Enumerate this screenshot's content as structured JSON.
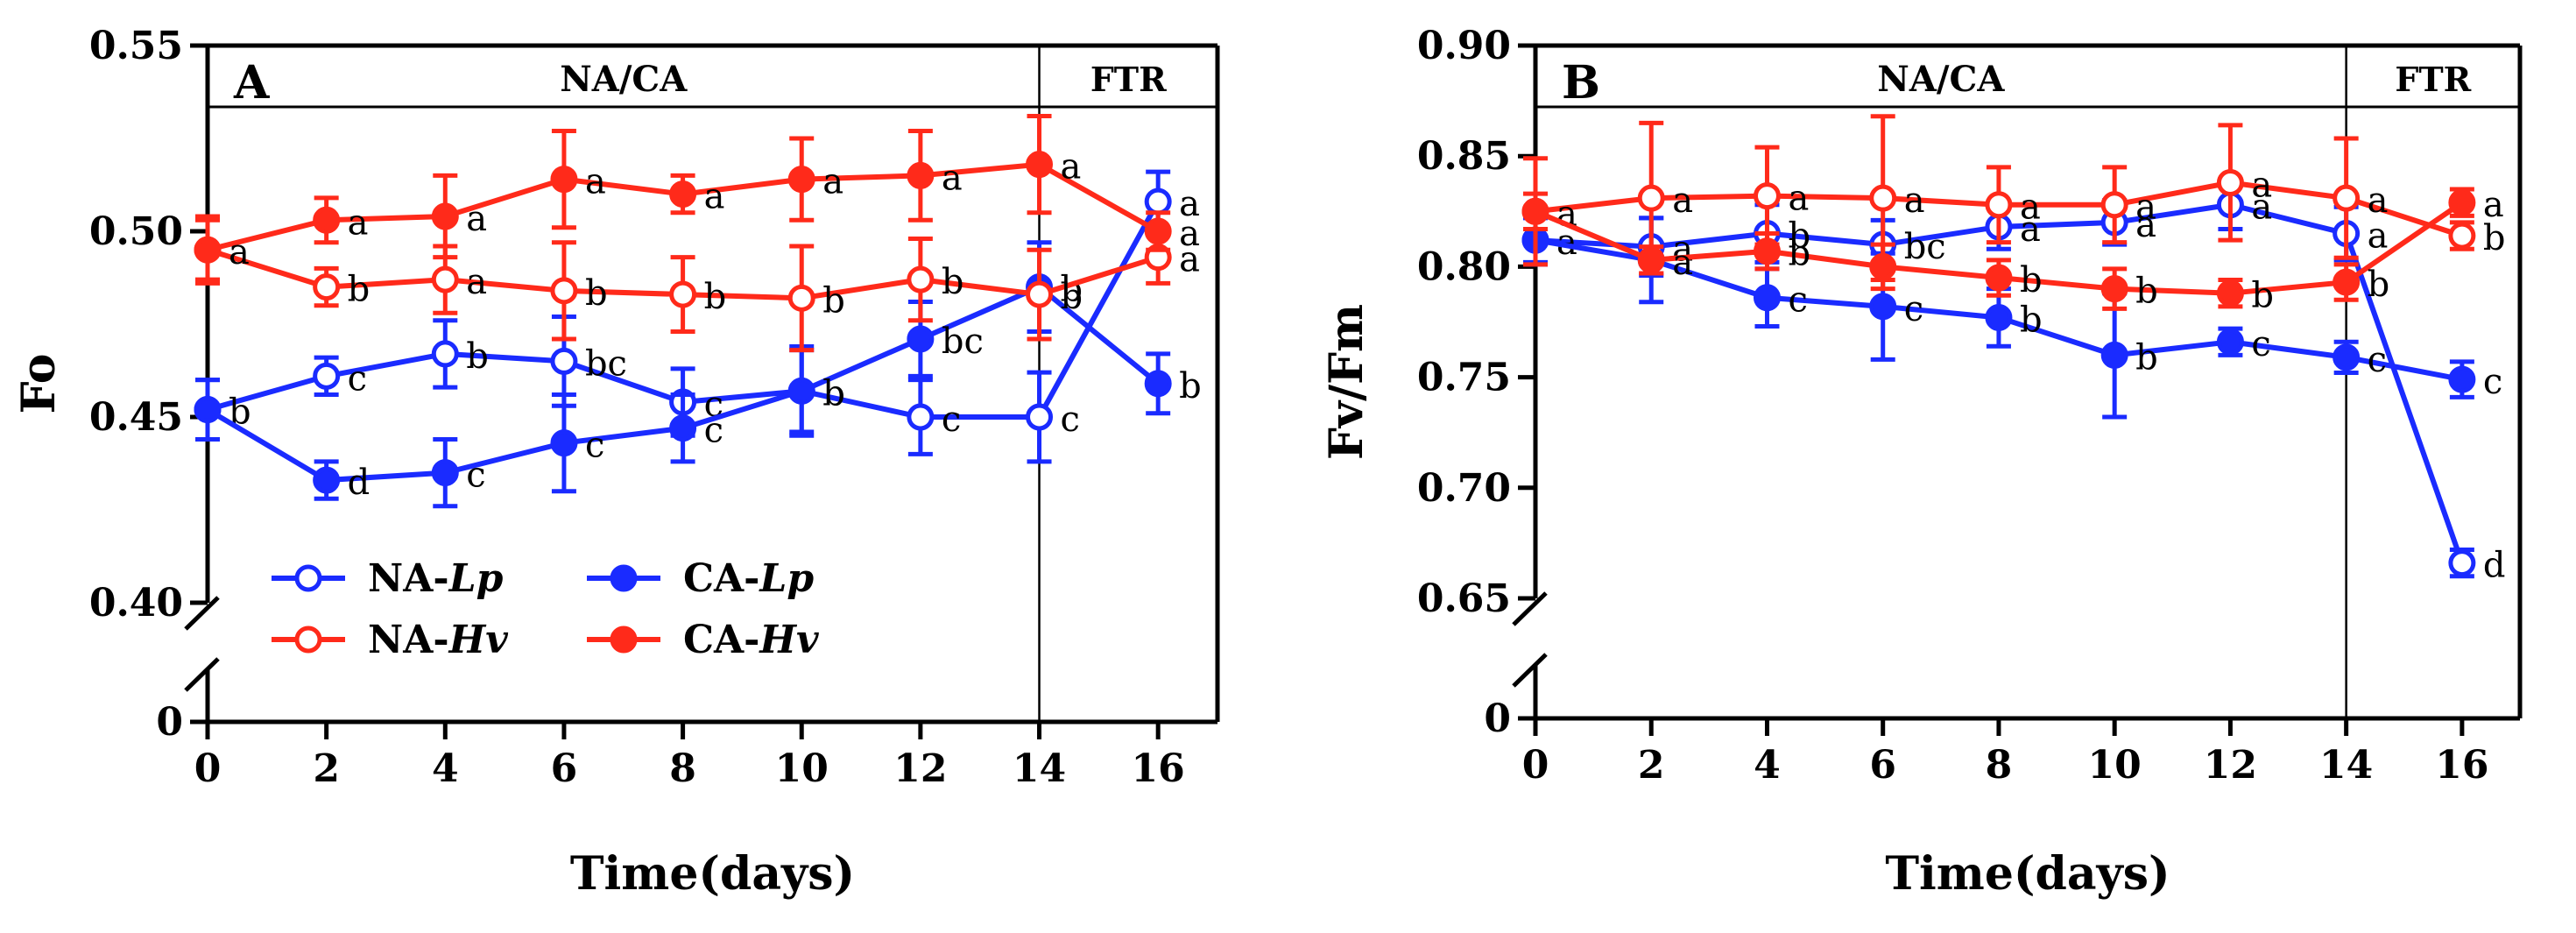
{
  "colors": {
    "blue": "#1a2bff",
    "red": "#ff2a1a",
    "axis": "#000000"
  },
  "chart_data": [
    {
      "type": "line",
      "panel_label": "A",
      "ylabel": "Fo",
      "xlabel": "Time(days)",
      "x": [
        0,
        2,
        4,
        6,
        8,
        10,
        12,
        14,
        16
      ],
      "xticks": [
        "0",
        "2",
        "4",
        "6",
        "8",
        "10",
        "12",
        "14",
        "16"
      ],
      "xlim": [
        0,
        17
      ],
      "ylim": [
        0.4,
        0.55
      ],
      "yticks": [
        "0.40",
        "0.45",
        "0.50",
        "0.55"
      ],
      "y_zero_label": "0",
      "y_zero": 0,
      "y_decimals": 2,
      "divider_x": 14,
      "headers": [
        "NA/CA",
        "FTR"
      ],
      "series": [
        {
          "name": "NA-Lp",
          "base": "NA-",
          "italic": "Lp",
          "color": "blue",
          "filled": false,
          "values": [
            0.452,
            0.461,
            0.467,
            0.465,
            0.454,
            0.457,
            0.45,
            0.45,
            0.508
          ],
          "errors": [
            0.008,
            0.005,
            0.009,
            0.012,
            0.009,
            0.011,
            0.01,
            0.012,
            0.008
          ],
          "letters": [
            "b",
            "c",
            "b",
            "bc",
            "c",
            "b",
            "c",
            "c",
            "a"
          ]
        },
        {
          "name": "CA-Lp",
          "base": "CA-",
          "italic": "Lp",
          "color": "blue",
          "filled": true,
          "values": [
            0.452,
            0.433,
            0.435,
            0.443,
            0.447,
            0.457,
            0.471,
            0.485,
            0.459
          ],
          "errors": [
            0.008,
            0.005,
            0.009,
            0.013,
            0.009,
            0.012,
            0.01,
            0.012,
            0.008
          ],
          "letters": [
            "",
            "d",
            "c",
            "c",
            "c",
            "b",
            "bc",
            "b",
            "b"
          ]
        },
        {
          "name": "NA-Hv",
          "base": "NA-",
          "italic": "Hv",
          "color": "red",
          "filled": false,
          "values": [
            0.495,
            0.485,
            0.487,
            0.484,
            0.483,
            0.482,
            0.487,
            0.483,
            0.493
          ],
          "errors": [
            0.009,
            0.005,
            0.009,
            0.013,
            0.01,
            0.014,
            0.011,
            0.012,
            0.007
          ],
          "letters": [
            "",
            "b",
            "a",
            "b",
            "b",
            "b",
            "b",
            "b",
            "a"
          ]
        },
        {
          "name": "CA-Hv",
          "base": "CA-",
          "italic": "Hv",
          "color": "red",
          "filled": true,
          "values": [
            0.495,
            0.503,
            0.504,
            0.514,
            0.51,
            0.514,
            0.515,
            0.518,
            0.5
          ],
          "errors": [
            0.008,
            0.006,
            0.011,
            0.013,
            0.005,
            0.011,
            0.012,
            0.013,
            0.005
          ],
          "letters": [
            "a",
            "a",
            "a",
            "a",
            "a",
            "a",
            "a",
            "a",
            "a"
          ]
        }
      ],
      "legend": [
        {
          "series": 0,
          "col": 0,
          "row": 0
        },
        {
          "series": 1,
          "col": 1,
          "row": 0
        },
        {
          "series": 2,
          "col": 0,
          "row": 1
        },
        {
          "series": 3,
          "col": 1,
          "row": 1
        }
      ]
    },
    {
      "type": "line",
      "panel_label": "B",
      "ylabel": "Fv/Fm",
      "xlabel": "Time(days)",
      "x": [
        0,
        2,
        4,
        6,
        8,
        10,
        12,
        14,
        16
      ],
      "xticks": [
        "0",
        "2",
        "4",
        "6",
        "8",
        "10",
        "12",
        "14",
        "16"
      ],
      "xlim": [
        0,
        17
      ],
      "ylim": [
        0.65,
        0.9
      ],
      "yticks": [
        "0.65",
        "0.70",
        "0.75",
        "0.80",
        "0.85",
        "0.90"
      ],
      "y_zero_label": "0",
      "y_zero": 0,
      "y_decimals": 2,
      "divider_x": 14,
      "headers": [
        "NA/CA",
        "FTR"
      ],
      "series": [
        {
          "name": "NA-Lp",
          "base": "NA-",
          "italic": "Lp",
          "color": "blue",
          "filled": false,
          "values": [
            0.812,
            0.809,
            0.815,
            0.81,
            0.818,
            0.82,
            0.828,
            0.815,
            0.666
          ],
          "errors": [
            0.011,
            0.013,
            0.013,
            0.011,
            0.01,
            0.01,
            0.011,
            0.012,
            0.006
          ],
          "letters": [
            "a",
            "a",
            "b",
            "bc",
            "a",
            "a",
            "a",
            "a",
            "d"
          ]
        },
        {
          "name": "CA-Lp",
          "base": "CA-",
          "italic": "Lp",
          "color": "blue",
          "filled": true,
          "values": [
            0.812,
            0.803,
            0.786,
            0.782,
            0.777,
            0.76,
            0.766,
            0.759,
            0.749
          ],
          "errors": [
            0.01,
            0.019,
            0.013,
            0.024,
            0.013,
            0.028,
            0.006,
            0.007,
            0.008
          ],
          "letters": [
            "",
            "",
            "c",
            "c",
            "b",
            "b",
            "c",
            "c",
            "c"
          ]
        },
        {
          "name": "NA-Hv",
          "base": "NA-",
          "italic": "Hv",
          "color": "red",
          "filled": false,
          "values": [
            0.825,
            0.831,
            0.832,
            0.831,
            0.828,
            0.828,
            0.838,
            0.831,
            0.814
          ],
          "errors": [
            0.024,
            0.034,
            0.022,
            0.037,
            0.017,
            0.017,
            0.026,
            0.027,
            0.006
          ],
          "letters": [
            "a",
            "a",
            "a",
            "a",
            "a",
            "a",
            "a",
            "a",
            "b"
          ]
        },
        {
          "name": "CA-Hv",
          "base": "CA-",
          "italic": "Hv",
          "color": "red",
          "filled": true,
          "values": [
            0.825,
            0.803,
            0.807,
            0.8,
            0.795,
            0.79,
            0.788,
            0.793,
            0.829
          ],
          "errors": [
            0.008,
            0.006,
            0.008,
            0.01,
            0.008,
            0.009,
            0.006,
            0.008,
            0.006
          ],
          "letters": [
            "",
            "a",
            "b",
            "",
            "b",
            "b",
            "b",
            "b",
            "a"
          ]
        }
      ],
      "legend": []
    }
  ]
}
